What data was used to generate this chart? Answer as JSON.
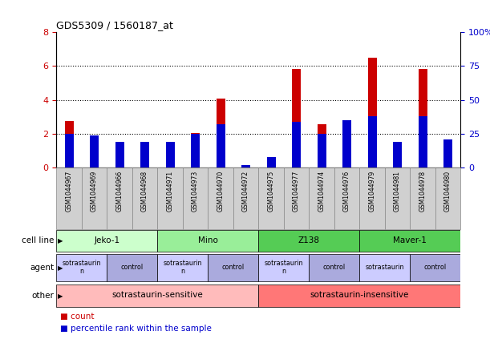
{
  "title": "GDS5309 / 1560187_at",
  "samples": [
    "GSM1044967",
    "GSM1044969",
    "GSM1044966",
    "GSM1044968",
    "GSM1044971",
    "GSM1044973",
    "GSM1044970",
    "GSM1044972",
    "GSM1044975",
    "GSM1044977",
    "GSM1044974",
    "GSM1044976",
    "GSM1044979",
    "GSM1044981",
    "GSM1044978",
    "GSM1044980"
  ],
  "count_values": [
    2.75,
    1.9,
    1.5,
    1.45,
    1.5,
    2.05,
    4.1,
    0.15,
    0.6,
    5.85,
    2.55,
    2.8,
    6.5,
    1.5,
    5.85,
    1.65
  ],
  "pct_values_scaled": [
    2.0,
    1.92,
    1.52,
    1.52,
    1.52,
    2.0,
    2.56,
    0.16,
    0.64,
    2.72,
    2.0,
    2.8,
    3.04,
    1.52,
    3.04,
    1.68
  ],
  "ylim_left": [
    0,
    8
  ],
  "ylim_right": [
    0,
    100
  ],
  "yticks_left": [
    0,
    2,
    4,
    6,
    8
  ],
  "yticks_right": [
    0,
    25,
    50,
    75,
    100
  ],
  "ytick_labels_right": [
    "0",
    "25",
    "50",
    "75",
    "100%"
  ],
  "bar_color": "#cc0000",
  "pct_color": "#0000cc",
  "cell_line_groups": [
    {
      "label": "Jeko-1",
      "start": 0,
      "end": 3,
      "color": "#ccffcc"
    },
    {
      "label": "Mino",
      "start": 4,
      "end": 7,
      "color": "#99ee99"
    },
    {
      "label": "Z138",
      "start": 8,
      "end": 11,
      "color": "#55cc55"
    },
    {
      "label": "Maver-1",
      "start": 12,
      "end": 15,
      "color": "#55cc55"
    }
  ],
  "agent_groups": [
    {
      "label": "sotrastaurin\nn",
      "start": 0,
      "end": 1,
      "color": "#ccccff"
    },
    {
      "label": "control",
      "start": 2,
      "end": 3,
      "color": "#aaaadd"
    },
    {
      "label": "sotrastaurin\nn",
      "start": 4,
      "end": 5,
      "color": "#ccccff"
    },
    {
      "label": "control",
      "start": 6,
      "end": 7,
      "color": "#aaaadd"
    },
    {
      "label": "sotrastaurin\nn",
      "start": 8,
      "end": 9,
      "color": "#ccccff"
    },
    {
      "label": "control",
      "start": 10,
      "end": 11,
      "color": "#aaaadd"
    },
    {
      "label": "sotrastaurin",
      "start": 12,
      "end": 13,
      "color": "#ccccff"
    },
    {
      "label": "control",
      "start": 14,
      "end": 15,
      "color": "#aaaadd"
    }
  ],
  "other_groups": [
    {
      "label": "sotrastaurin-sensitive",
      "start": 0,
      "end": 7,
      "color": "#ffbbbb"
    },
    {
      "label": "sotrastaurin-insensitive",
      "start": 8,
      "end": 15,
      "color": "#ff7777"
    }
  ],
  "row_labels": [
    "cell line",
    "agent",
    "other"
  ],
  "bar_width": 0.35,
  "pct_bar_width": 0.35
}
